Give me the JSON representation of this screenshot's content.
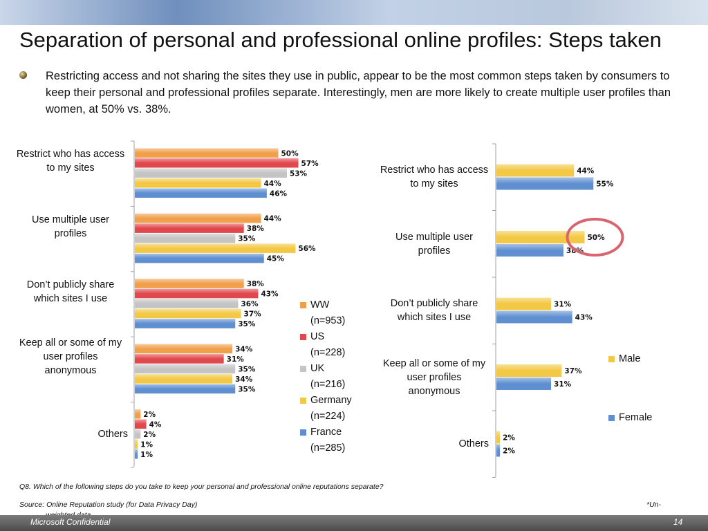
{
  "slide": {
    "title": "Separation of personal and professional online profiles:  Steps taken",
    "bullet": "Restricting access and not sharing the sites they use in public, appear to be the most common steps taken by consumers to keep their personal and professional profiles separate.  Interestingly, men are more likely to create multiple user profiles than women, at 50% vs. 38%.",
    "question": "Q8. Which of the following steps do you take to keep your personal and professional online reputations separate?",
    "source": "Source: Online Reputation study (for Data Privacy Day)",
    "unweighted_star": "*Un-",
    "unweighted_rest": "weighted data",
    "footer_left": "Microsoft Confidential",
    "page_number": "14"
  },
  "chart_data": [
    {
      "type": "bar",
      "orientation": "horizontal",
      "categories": [
        "Restrict who has access to my sites",
        "Use multiple user profiles",
        "Don't publicly share which sites I use",
        "Keep all or some of my user profiles anonymous",
        "Others"
      ],
      "series": [
        {
          "name": "WW (n=953)",
          "color": "#f0a04b",
          "values": [
            50,
            44,
            38,
            34,
            2
          ]
        },
        {
          "name": "US (n=228)",
          "color": "#e0484e",
          "values": [
            57,
            38,
            43,
            31,
            4
          ]
        },
        {
          "name": "UK (n=216)",
          "color": "#c4c4c4",
          "values": [
            53,
            35,
            36,
            35,
            2
          ]
        },
        {
          "name": "Germany (n=224)",
          "color": "#f3c844",
          "values": [
            44,
            56,
            37,
            34,
            1
          ]
        },
        {
          "name": "France (n=285)",
          "color": "#5f8fd0",
          "values": [
            46,
            45,
            35,
            35,
            1
          ]
        }
      ],
      "value_suffix": "%",
      "legend_position": "right",
      "xlim": [
        0,
        60
      ]
    },
    {
      "type": "bar",
      "orientation": "horizontal",
      "categories": [
        "Restrict who has access to my sites",
        "Use multiple user profiles",
        "Don't publicly share which sites I use",
        "Keep all or some of my user profiles anonymous",
        "Others"
      ],
      "series": [
        {
          "name": "Male",
          "color": "#f3c844",
          "values": [
            44,
            50,
            31,
            37,
            2
          ]
        },
        {
          "name": "Female",
          "color": "#5f8fd0",
          "values": [
            55,
            38,
            43,
            31,
            2
          ]
        }
      ],
      "value_suffix": "%",
      "legend_position": "right",
      "highlight": {
        "category": "Use multiple user profiles",
        "series": "Male",
        "color": "#d9636e"
      },
      "xlim": [
        0,
        60
      ]
    }
  ],
  "left_labels": [
    [
      "Restrict who has access",
      "to my sites"
    ],
    [
      "Use multiple user",
      "profiles"
    ],
    [
      "Don’t publicly share",
      "which sites I use"
    ],
    [
      "Keep all or some of my",
      "user profiles",
      "anonymous"
    ],
    [
      "Others"
    ]
  ],
  "right_labels": [
    [
      "Restrict who has access",
      "to my sites"
    ],
    [
      "Use multiple user",
      "profiles"
    ],
    [
      "Don’t publicly share",
      "which sites I use"
    ],
    [
      "Keep all or some of my",
      "user profiles",
      "anonymous"
    ],
    [
      "Others"
    ]
  ],
  "legend_left": [
    {
      "line1": "WW",
      "line2": "(n=953)",
      "color": "#f0a04b"
    },
    {
      "line1": "US",
      "line2": "(n=228)",
      "color": "#e0484e"
    },
    {
      "line1": "UK",
      "line2": "(n=216)",
      "color": "#c4c4c4"
    },
    {
      "line1": "Germany",
      "line2": "(n=224)",
      "color": "#f3c844"
    },
    {
      "line1": "France",
      "line2": "(n=285)",
      "color": "#5f8fd0"
    }
  ],
  "legend_right": [
    {
      "label": "Male",
      "color": "#f3c844"
    },
    {
      "label": "Female",
      "color": "#5f8fd0"
    }
  ]
}
